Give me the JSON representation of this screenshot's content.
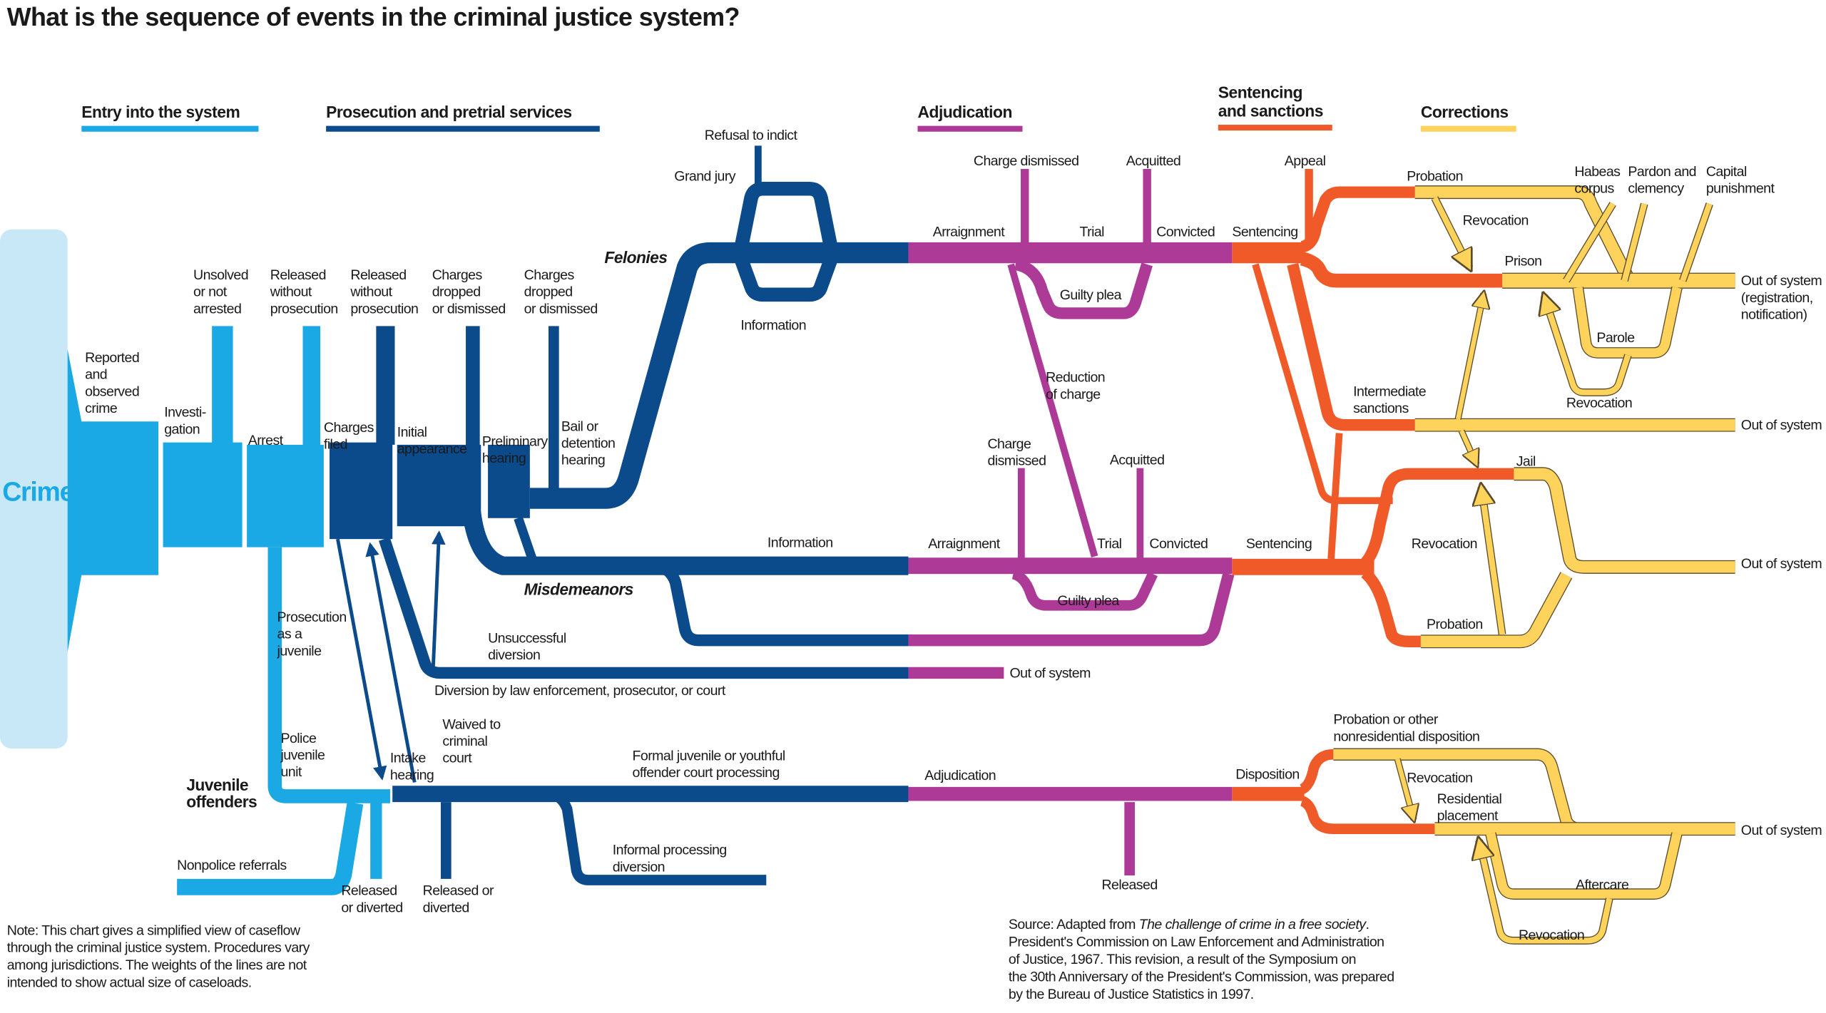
{
  "title": "What is the sequence of events in the criminal justice system?",
  "headers": [
    {
      "lines": [
        "Entry into the system"
      ],
      "color": "#1ba9e6"
    },
    {
      "lines": [
        "Prosecution and pretrial services"
      ],
      "color": "#0b4a8b"
    },
    {
      "lines": [
        "Adjudication"
      ],
      "color": "#ae3a98"
    },
    {
      "lines": [
        "Sentencing",
        "and sanctions"
      ],
      "color": "#f05a28"
    },
    {
      "lines": [
        "Corrections"
      ],
      "color": "#fdd35c"
    }
  ],
  "colors": {
    "crime_block": "#c8e8f8",
    "entry": "#1ba9e6",
    "prosecution": "#0b4a8b",
    "adjudication": "#ae3a98",
    "sentencing": "#f05a28",
    "corrections": "#fdd35c",
    "corrections_outline": "#5a4a2a"
  },
  "labels": {
    "crime": [
      "Crime"
    ],
    "reported": [
      "Reported",
      "and",
      "observed",
      "crime"
    ],
    "investigation": [
      "Investi-",
      "gation"
    ],
    "arrest": [
      "Arrest"
    ],
    "unsolved": [
      "Unsolved",
      "or not",
      "arrested"
    ],
    "released_wo_pros_1": [
      "Released",
      "without",
      "prosecution"
    ],
    "released_wo_pros_2": [
      "Released",
      "without",
      "prosecution"
    ],
    "charges_dropped_1": [
      "Charges",
      "dropped",
      "or dismissed"
    ],
    "charges_dropped_2": [
      "Charges",
      "dropped",
      "or dismissed"
    ],
    "charges_filed": [
      "Charges",
      "filed"
    ],
    "initial_appearance": [
      "Initial",
      "appearance"
    ],
    "preliminary_hearing": [
      "Preliminary",
      "hearing"
    ],
    "bail_hearing": [
      "Bail or",
      "detention",
      "hearing"
    ],
    "grand_jury": [
      "Grand jury"
    ],
    "refusal_to_indict": [
      "Refusal to indict"
    ],
    "felonies": [
      "Felonies"
    ],
    "information_felony": [
      "Information"
    ],
    "information_misd": [
      "Information"
    ],
    "misdemeanors": [
      "Misdemeanors"
    ],
    "unsuccessful_diversion": [
      "Unsuccessful",
      "diversion"
    ],
    "diversion": [
      "Diversion by law enforcement, prosecutor, or court"
    ],
    "out_of_system_diversion": [
      "Out of system"
    ],
    "prosecution_juvenile": [
      "Prosecution",
      "as a",
      "juvenile"
    ],
    "police_juvenile_unit": [
      "Police",
      "juvenile",
      "unit"
    ],
    "juvenile_offenders": [
      "Juvenile",
      "offenders"
    ],
    "intake_hearing": [
      "Intake",
      "hearing"
    ],
    "waived": [
      "Waived to",
      "criminal",
      "court"
    ],
    "formal_juvenile": [
      "Formal juvenile or youthful",
      "offender court processing"
    ],
    "nonpolice_referrals": [
      "Nonpolice referrals"
    ],
    "released_diverted_1": [
      "Released",
      "or diverted"
    ],
    "released_diverted_2": [
      "Released or",
      "diverted"
    ],
    "informal_processing": [
      "Informal processing",
      "diversion"
    ],
    "arraignment_f": [
      "Arraignment"
    ],
    "charge_dismissed_f": [
      "Charge dismissed"
    ],
    "acquitted_f": [
      "Acquitted"
    ],
    "trial_f": [
      "Trial"
    ],
    "convicted_f": [
      "Convicted"
    ],
    "guilty_plea_f": [
      "Guilty plea"
    ],
    "reduction_of_charge": [
      "Reduction",
      "of charge"
    ],
    "arraignment_m": [
      "Arraignment"
    ],
    "charge_dismissed_m": [
      "Charge",
      "dismissed"
    ],
    "acquitted_m": [
      "Acquitted"
    ],
    "trial_m": [
      "Trial"
    ],
    "convicted_m": [
      "Convicted"
    ],
    "guilty_plea_m": [
      "Guilty plea"
    ],
    "adjudication_j": [
      "Adjudication"
    ],
    "released_j": [
      "Released"
    ],
    "sentencing_f": [
      "Sentencing"
    ],
    "appeal": [
      "Appeal"
    ],
    "sentencing_m": [
      "Sentencing"
    ],
    "disposition": [
      "Disposition"
    ],
    "probation_f": [
      "Probation"
    ],
    "revocation_probation": [
      "Revocation"
    ],
    "prison": [
      "Prison"
    ],
    "habeas": [
      "Habeas",
      "corpus"
    ],
    "pardon": [
      "Pardon and",
      "clemency"
    ],
    "capital": [
      "Capital",
      "punishment"
    ],
    "out_of_system_prison": [
      "Out of system",
      "(registration,",
      "notification)"
    ],
    "parole": [
      "Parole"
    ],
    "revocation_parole": [
      "Revocation"
    ],
    "intermediate": [
      "Intermediate",
      "sanctions"
    ],
    "out_of_system_intermediate": [
      "Out of system"
    ],
    "jail": [
      "Jail"
    ],
    "revocation_jail": [
      "Revocation"
    ],
    "out_of_system_jail": [
      "Out of system"
    ],
    "probation_m": [
      "Probation"
    ],
    "probation_other": [
      "Probation or other",
      "nonresidential disposition"
    ],
    "revocation_j": [
      "Revocation"
    ],
    "residential": [
      "Residential",
      "placement"
    ],
    "out_of_system_j": [
      "Out of system"
    ],
    "aftercare": [
      "Aftercare"
    ],
    "revocation_aftercare": [
      "Revocation"
    ]
  },
  "note": [
    "Note: This chart gives a simplified view of caseflow",
    "through the criminal justice system. Procedures vary",
    "among jurisdictions. The weights of the lines are not",
    "intended to show actual size of caseloads."
  ],
  "source": {
    "prefix": "Source: Adapted from ",
    "italic": "The challenge of crime in a free society",
    "suffix": ".",
    "lines": [
      "President's Commission on Law Enforcement and Administration",
      "of Justice, 1967. This revision, a result of the Symposium on",
      "the 30th Anniversary of the President's Commission, was prepared",
      "by the Bureau of Justice Statistics in 1997."
    ]
  }
}
